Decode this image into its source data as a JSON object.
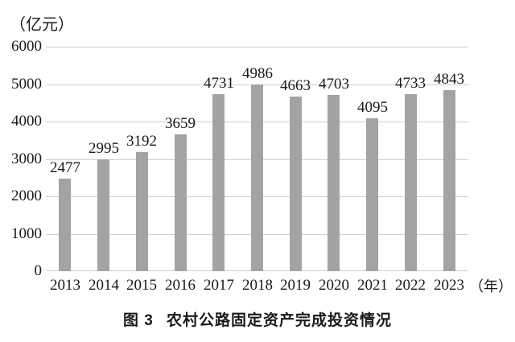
{
  "chart": {
    "unit_label": "（亿元）",
    "x_unit_label": "（年）",
    "caption_label": "图 3",
    "caption_title": "农村公路固定资产完成投资情况"
  },
  "chart_data": {
    "type": "bar",
    "title": "图3 农村公路固定资产完成投资情况",
    "categories": [
      "2013",
      "2014",
      "2015",
      "2016",
      "2017",
      "2018",
      "2019",
      "2020",
      "2021",
      "2022",
      "2023"
    ],
    "values": [
      2477,
      2995,
      3192,
      3659,
      4731,
      4986,
      4663,
      4703,
      4095,
      4733,
      4843
    ],
    "xlabel": "（年）",
    "ylabel": "（亿元）",
    "ylim": [
      0,
      6000
    ],
    "yticks": [
      0,
      1000,
      2000,
      3000,
      4000,
      5000,
      6000
    ],
    "grid": true,
    "data_labels": true,
    "legend_position": "none",
    "bar_color": "#a3a3a3",
    "gridline_color": "#cfcfcf",
    "text_color": "#1a1a1a"
  }
}
